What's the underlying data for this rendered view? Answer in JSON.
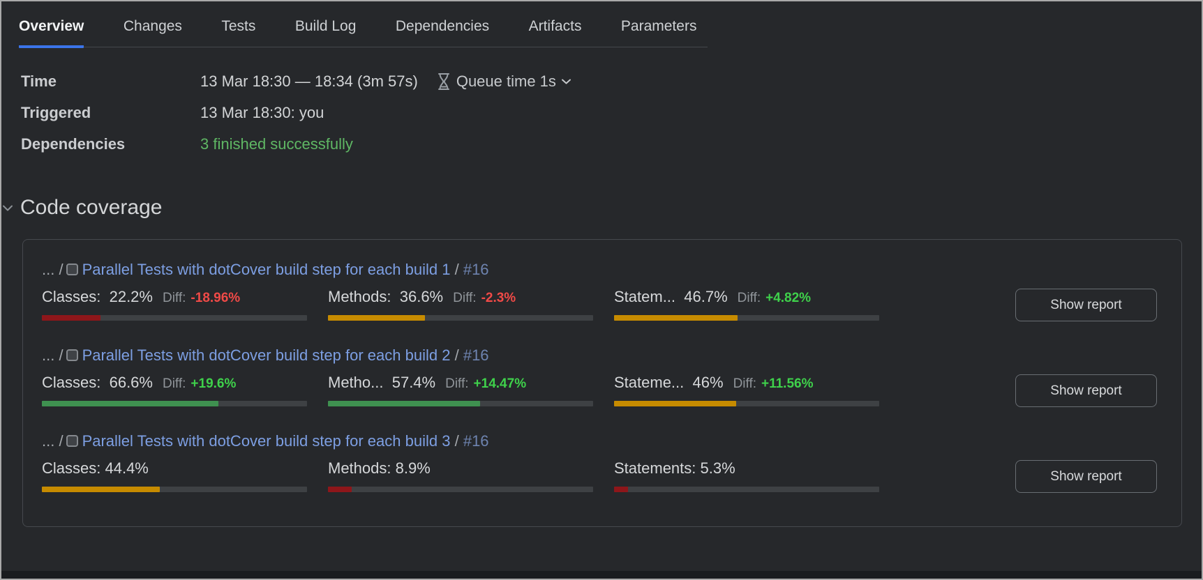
{
  "colors": {
    "accent_blue": "#3b74e9",
    "link_blue": "#7d9fe3",
    "build_number_blue": "#6e84b0",
    "success_green": "#5fb764",
    "diff_green": "#3fd14b",
    "diff_red": "#f04a47",
    "bar_red": "#8e161a",
    "bar_amber": "#c68b00",
    "bar_green": "#3f9150",
    "bar_track": "#3e4144"
  },
  "tabs": {
    "items": [
      {
        "label": "Overview",
        "active": true
      },
      {
        "label": "Changes",
        "active": false
      },
      {
        "label": "Tests",
        "active": false
      },
      {
        "label": "Build Log",
        "active": false
      },
      {
        "label": "Dependencies",
        "active": false
      },
      {
        "label": "Artifacts",
        "active": false
      },
      {
        "label": "Parameters",
        "active": false
      }
    ]
  },
  "info": {
    "time": {
      "label": "Time",
      "value": "13 Mar 18:30 — 18:34 (3m 57s)",
      "queue_label": "Queue time 1s"
    },
    "triggered": {
      "label": "Triggered",
      "value": "13 Mar 18:30: you"
    },
    "dependencies": {
      "label": "Dependencies",
      "value": "3 finished successfully"
    }
  },
  "coverage": {
    "section_title": "Code coverage",
    "show_report_label": "Show report",
    "rows": [
      {
        "path_prefix": "... /",
        "build_name": "Parallel Tests with dotCover build step for each build 1",
        "separator": "/",
        "build_number": "#16",
        "metrics": [
          {
            "label": "Classes:",
            "value": "22.2%",
            "diff_label": "Diff:",
            "diff": "-18.96%",
            "diff_dir": "down",
            "percent": 22.2,
            "level": "red"
          },
          {
            "label": "Methods:",
            "value": "36.6%",
            "diff_label": "Diff:",
            "diff": "-2.3%",
            "diff_dir": "down",
            "percent": 36.6,
            "level": "amber"
          },
          {
            "label": "Statem...",
            "value": "46.7%",
            "diff_label": "Diff:",
            "diff": "+4.82%",
            "diff_dir": "up",
            "percent": 46.7,
            "level": "amber"
          }
        ]
      },
      {
        "path_prefix": "... /",
        "build_name": "Parallel Tests with dotCover build step for each build 2",
        "separator": "/",
        "build_number": "#16",
        "metrics": [
          {
            "label": "Classes:",
            "value": "66.6%",
            "diff_label": "Diff:",
            "diff": "+19.6%",
            "diff_dir": "up",
            "percent": 66.6,
            "level": "green"
          },
          {
            "label": "Metho...",
            "value": "57.4%",
            "diff_label": "Diff:",
            "diff": "+14.47%",
            "diff_dir": "up",
            "percent": 57.4,
            "level": "green"
          },
          {
            "label": "Stateme...",
            "value": "46%",
            "diff_label": "Diff:",
            "diff": "+11.56%",
            "diff_dir": "up",
            "percent": 46,
            "level": "amber"
          }
        ]
      },
      {
        "path_prefix": "... /",
        "build_name": "Parallel Tests with dotCover build step for each build 3",
        "separator": "/",
        "build_number": "#16",
        "metrics": [
          {
            "label": "Classes:",
            "value": "44.4%",
            "percent": 44.4,
            "level": "amber"
          },
          {
            "label": "Methods:",
            "value": "8.9%",
            "percent": 8.9,
            "level": "red"
          },
          {
            "label": "Statements:",
            "value": "5.3%",
            "percent": 5.3,
            "level": "red"
          }
        ]
      }
    ]
  }
}
